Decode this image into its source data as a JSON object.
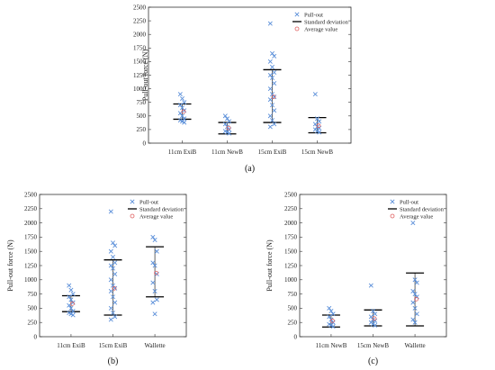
{
  "chart_data": [
    {
      "type": "scatter",
      "panel_label": "(a)",
      "ylabel": "Pull-out force (N)",
      "ylim": [
        0,
        2500
      ],
      "yticks": [
        0,
        250,
        500,
        750,
        1000,
        1250,
        1500,
        1750,
        2000,
        2250,
        2500
      ],
      "categories": [
        "11cm ExiB",
        "11cm NewB",
        "15cm ExiB",
        "15cm NewB"
      ],
      "legend": {
        "pullout": "Pull-out",
        "sd": "Standard deviation",
        "avg": "Average value",
        "position": "top-right"
      },
      "groups": [
        {
          "points": [
            900,
            820,
            750,
            700,
            650,
            600,
            550,
            500,
            450,
            420,
            400,
            380
          ],
          "sd": [
            440,
            720
          ],
          "avg": 580
        },
        {
          "points": [
            500,
            450,
            400,
            350,
            300,
            250,
            220,
            200,
            180
          ],
          "sd": [
            170,
            380
          ],
          "avg": 280
        },
        {
          "points": [
            2200,
            1650,
            1600,
            1500,
            1400,
            1300,
            1250,
            1200,
            1100,
            1000,
            900,
            850,
            800,
            700,
            600,
            500,
            420,
            350,
            300
          ],
          "sd": [
            380,
            1350
          ],
          "avg": 850
        },
        {
          "points": [
            900,
            450,
            400,
            350,
            300,
            280,
            250,
            220,
            200
          ],
          "sd": [
            190,
            470
          ],
          "avg": 320
        }
      ]
    },
    {
      "type": "scatter",
      "panel_label": "(b)",
      "ylabel": "Pull-out force (N)",
      "ylim": [
        0,
        2500
      ],
      "yticks": [
        0,
        250,
        500,
        750,
        1000,
        1250,
        1500,
        1750,
        2000,
        2250,
        2500
      ],
      "categories": [
        "11cm ExiB",
        "15cm ExiB",
        "Wallette"
      ],
      "legend": {
        "pullout": "Pull-out",
        "sd": "Standard deviation",
        "avg": "Average value",
        "position": "top-right"
      },
      "groups": [
        {
          "points": [
            900,
            820,
            750,
            700,
            650,
            600,
            550,
            500,
            450,
            420,
            400,
            380
          ],
          "sd": [
            440,
            720
          ],
          "avg": 580
        },
        {
          "points": [
            2200,
            1650,
            1600,
            1500,
            1400,
            1300,
            1250,
            1200,
            1100,
            1000,
            900,
            850,
            800,
            700,
            600,
            500,
            420,
            350,
            300
          ],
          "sd": [
            380,
            1350
          ],
          "avg": 850
        },
        {
          "points": [
            1750,
            1700,
            1500,
            1300,
            1250,
            1100,
            950,
            800,
            650,
            600,
            400
          ],
          "sd": [
            700,
            1580
          ],
          "avg": 1120
        }
      ]
    },
    {
      "type": "scatter",
      "panel_label": "(c)",
      "ylabel": "Pull-out force (N)",
      "ylim": [
        0,
        2500
      ],
      "yticks": [
        0,
        250,
        500,
        750,
        1000,
        1250,
        1500,
        1750,
        2000,
        2250,
        2500
      ],
      "categories": [
        "11cm NewB",
        "15cm NewB",
        "Wallette"
      ],
      "legend": {
        "pullout": "Pull-out",
        "sd": "Standard deviation",
        "avg": "Average value",
        "position": "top-right"
      },
      "groups": [
        {
          "points": [
            500,
            450,
            400,
            350,
            300,
            250,
            220,
            200,
            180
          ],
          "sd": [
            170,
            380
          ],
          "avg": 280
        },
        {
          "points": [
            900,
            450,
            400,
            350,
            300,
            280,
            250,
            220,
            200
          ],
          "sd": [
            190,
            470
          ],
          "avg": 320
        },
        {
          "points": [
            2000,
            1000,
            950,
            800,
            750,
            700,
            600,
            500,
            400,
            300,
            250
          ],
          "sd": [
            190,
            1120
          ],
          "avg": 660
        }
      ]
    }
  ],
  "colors": {
    "pullout": "#5b8fd9",
    "sd": "#000000",
    "avg": "#e06060",
    "frame": "#333333"
  }
}
